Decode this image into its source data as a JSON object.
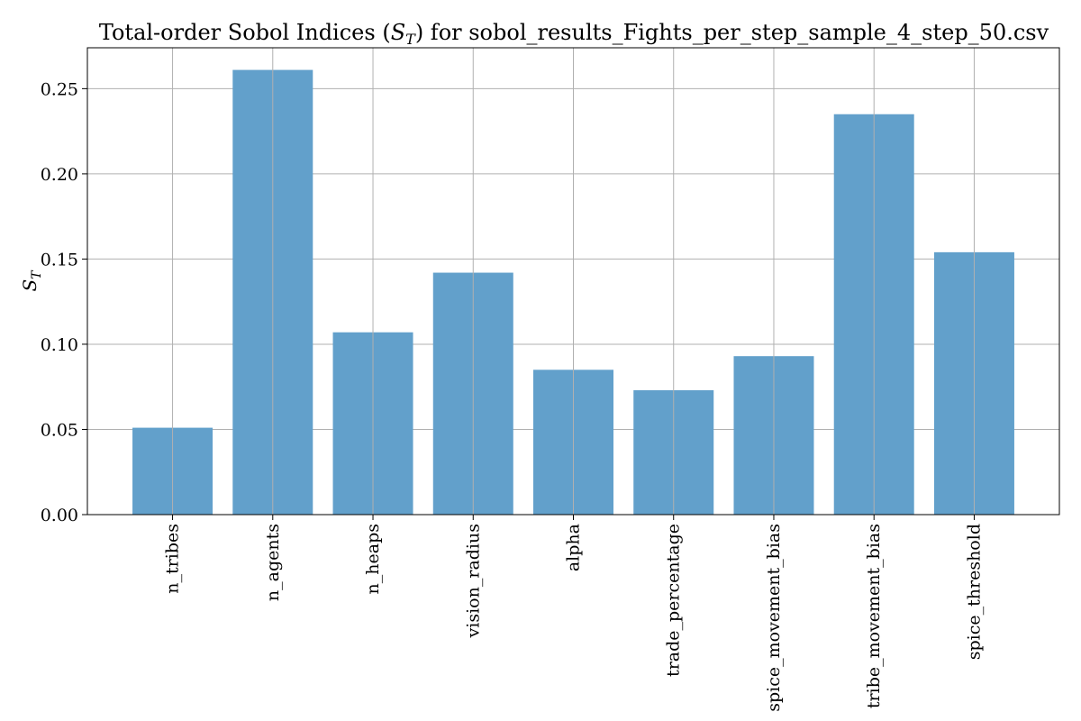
{
  "chart_data": {
    "type": "bar",
    "title": "Total-order Sobol Indices (S_T) for sobol_results_Fights_per_step_sample_4_step_50.csv",
    "title_parts": {
      "prefix": "Total-order Sobol Indices (",
      "symbol": "S",
      "subscript": "T",
      "suffix": ") for sobol_results_Fights_per_step_sample_4_step_50.csv"
    },
    "xlabel": "",
    "ylabel": "S_T",
    "ylabel_parts": {
      "symbol": "S",
      "subscript": "T"
    },
    "categories": [
      "n_tribes",
      "n_agents",
      "n_heaps",
      "vision_radius",
      "alpha",
      "trade_percentage",
      "spice_movement_bias",
      "tribe_movement_bias",
      "spice_threshold"
    ],
    "values": [
      0.051,
      0.261,
      0.107,
      0.142,
      0.085,
      0.073,
      0.093,
      0.235,
      0.154
    ],
    "ylim": [
      0,
      0.274
    ],
    "yticks": [
      0.0,
      0.05,
      0.1,
      0.15,
      0.2,
      0.25
    ],
    "ytick_labels": [
      "0.00",
      "0.05",
      "0.10",
      "0.15",
      "0.20",
      "0.25"
    ],
    "grid": true,
    "bar_color": "#62a0cb",
    "legend": "none"
  }
}
